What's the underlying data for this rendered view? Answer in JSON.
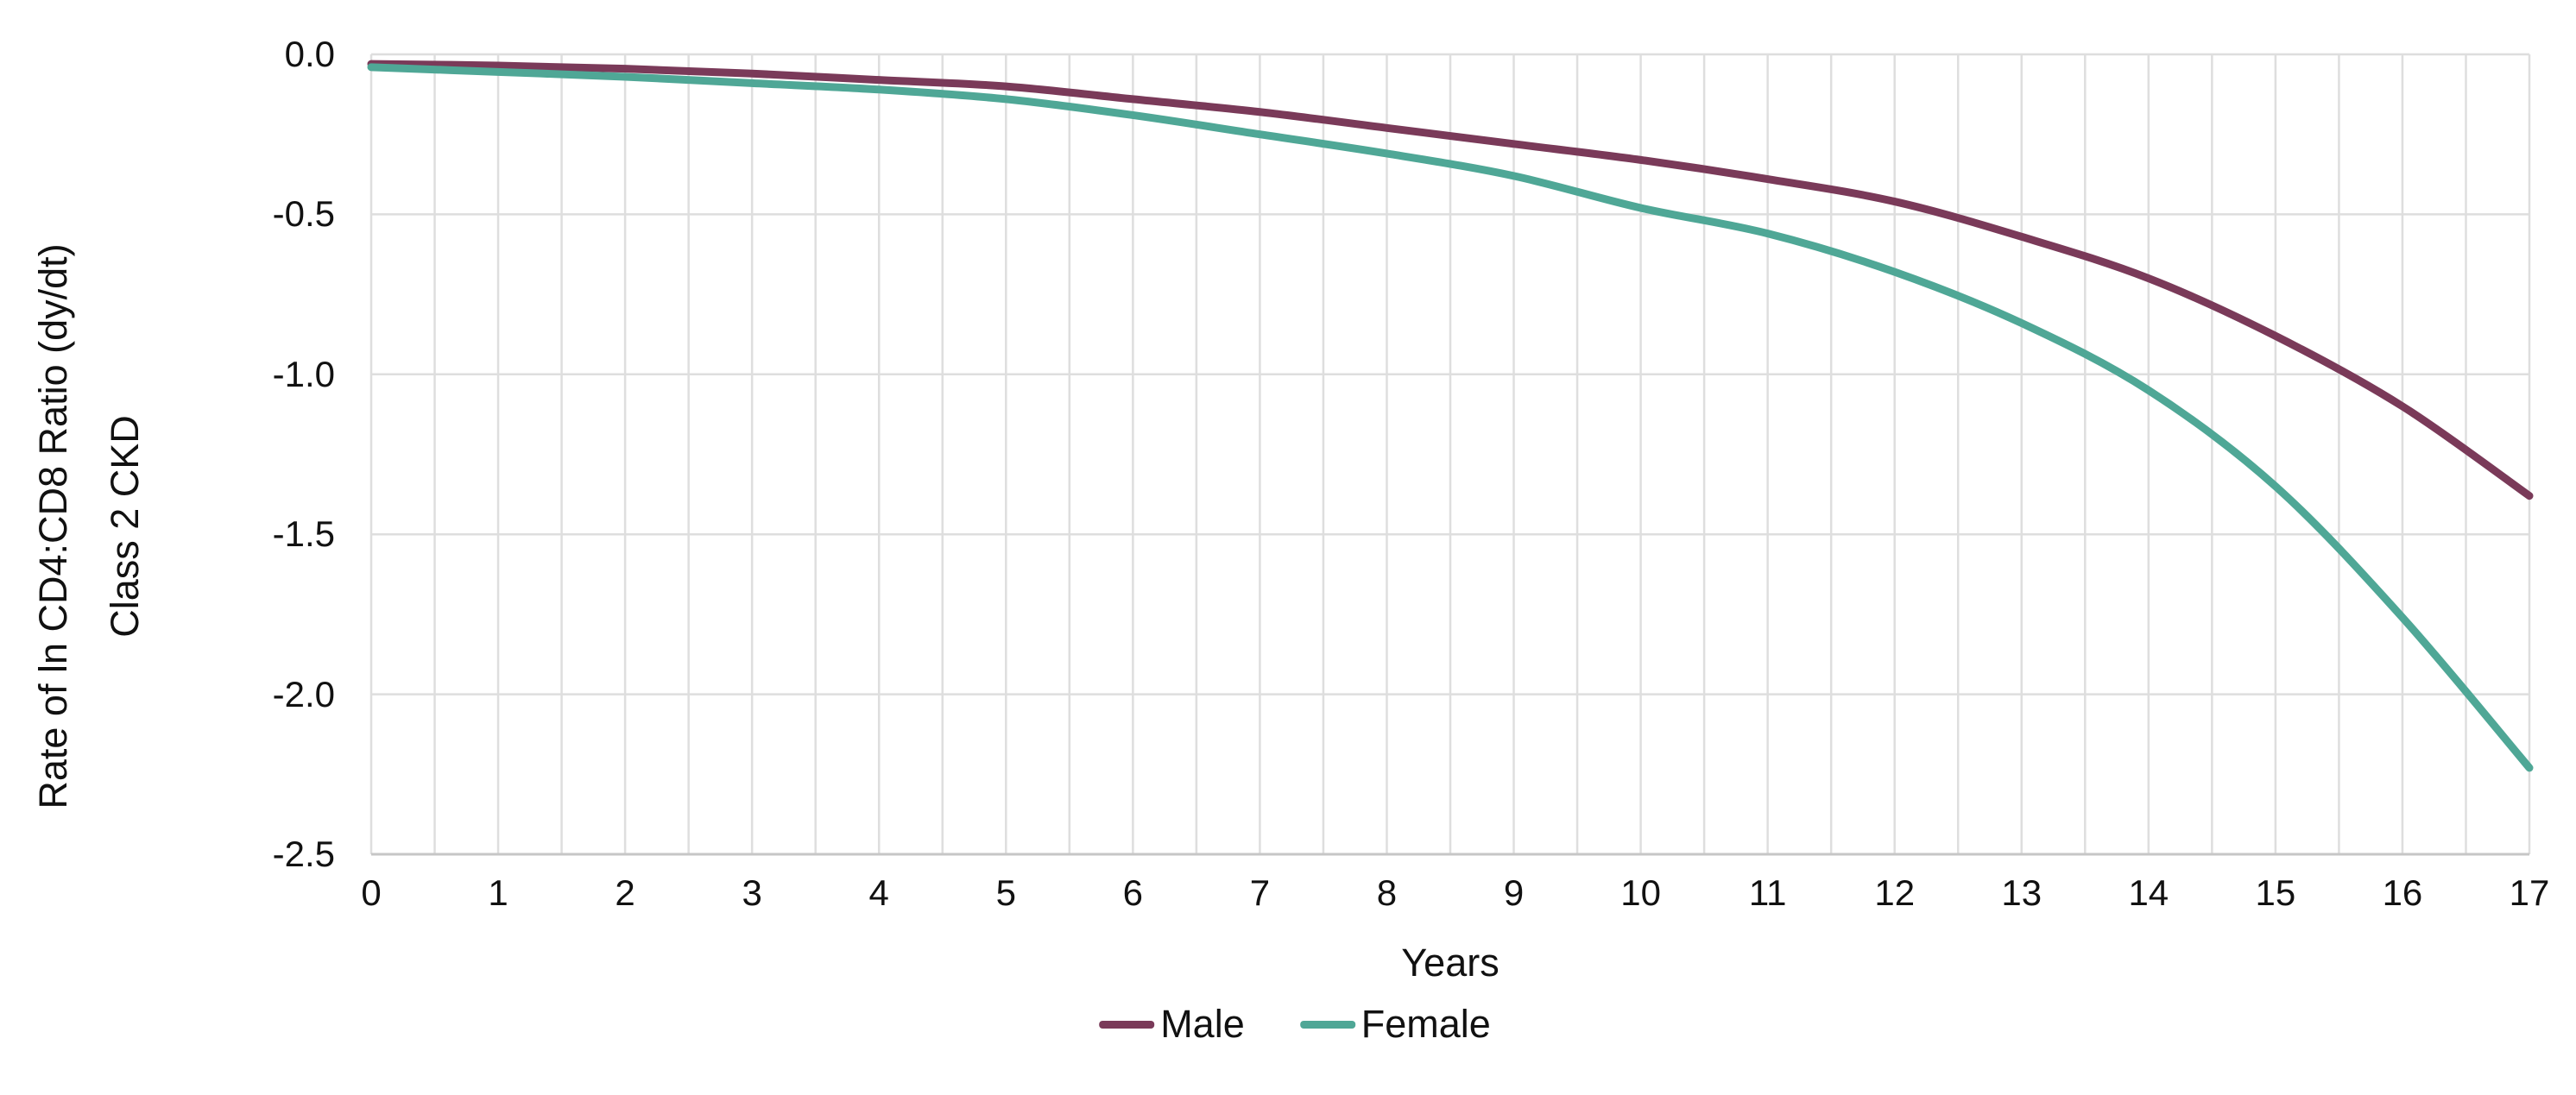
{
  "figure": {
    "y_axis_title_line1": "Rate of ln CD4:CD8 Ratio (dy/dt)",
    "y_axis_title_line2": "Class 2 CKD",
    "x_axis_title": "Years",
    "background": "#FFFFFF"
  },
  "legend": {
    "position": "bottom",
    "items": [
      {
        "label": "Male",
        "color": "#7A3A59"
      },
      {
        "label": "Female",
        "color": "#4FA796"
      }
    ]
  },
  "chart_data": {
    "type": "line",
    "title": "",
    "xlabel": "Years",
    "ylabel": "Rate of ln CD4:CD8 Ratio (dy/dt) Class 2 CKD",
    "x": [
      0,
      1,
      2,
      3,
      4,
      5,
      6,
      7,
      8,
      9,
      10,
      11,
      12,
      13,
      14,
      15,
      16,
      17
    ],
    "series": [
      {
        "name": "Male",
        "color": "#7A3A59",
        "values": [
          -0.03,
          -0.035,
          -0.045,
          -0.06,
          -0.08,
          -0.1,
          -0.14,
          -0.18,
          -0.23,
          -0.28,
          -0.33,
          -0.39,
          -0.46,
          -0.57,
          -0.7,
          -0.88,
          -1.1,
          -1.38
        ]
      },
      {
        "name": "Female",
        "color": "#4FA796",
        "values": [
          -0.04,
          -0.055,
          -0.07,
          -0.09,
          -0.11,
          -0.14,
          -0.19,
          -0.25,
          -0.31,
          -0.38,
          -0.48,
          -0.56,
          -0.68,
          -0.84,
          -1.05,
          -1.35,
          -1.76,
          -2.23
        ]
      }
    ],
    "xlim": [
      0,
      17
    ],
    "ylim": [
      -2.5,
      0
    ],
    "x_tick_labels": [
      "0",
      "1",
      "2",
      "3",
      "4",
      "5",
      "6",
      "7",
      "8",
      "9",
      "10",
      "11",
      "12",
      "13",
      "14",
      "15",
      "16",
      "17"
    ],
    "y_tick_labels": [
      "0.0",
      "-0.5",
      "-1.0",
      "-1.5",
      "-2.0",
      "-2.5"
    ],
    "y_tick_values": [
      0,
      -0.5,
      -1.0,
      -1.5,
      -2.0,
      -2.5
    ],
    "x_gridline_step": 0.5,
    "grid": true,
    "gridline_color": "#DEDEDE",
    "axis_line_color": "#C6C6C6",
    "legend_position": "bottom"
  }
}
